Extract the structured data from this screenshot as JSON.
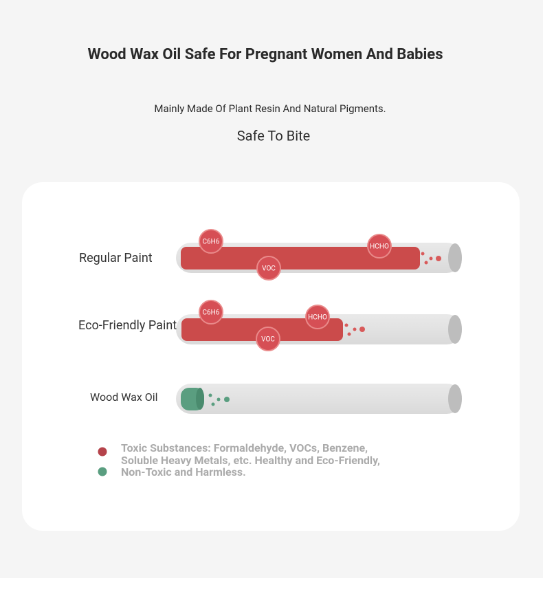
{
  "header": {
    "title": "Wood Wax Oil Safe For Pregnant Women And Babies",
    "subtitle": "Mainly Made Of Plant Resin And Natural Pigments.",
    "tagline": "Safe To Bite"
  },
  "rows": [
    {
      "label": "Regular Paint",
      "bubbles": [
        "C6H6",
        "HCHO",
        "VOC"
      ]
    },
    {
      "label": "Eco-Friendly Paint",
      "bubbles": [
        "C6H6",
        "HCHO",
        "VOC"
      ]
    },
    {
      "label": "Wood Wax Oil"
    }
  ],
  "legend": {
    "lines": [
      "Toxic Substances: Formaldehyde, VOCs, Benzene,",
      "Soluble Heavy Metals, etc. Healthy and Eco-Friendly,",
      "Non-Toxic and Harmless."
    ]
  }
}
